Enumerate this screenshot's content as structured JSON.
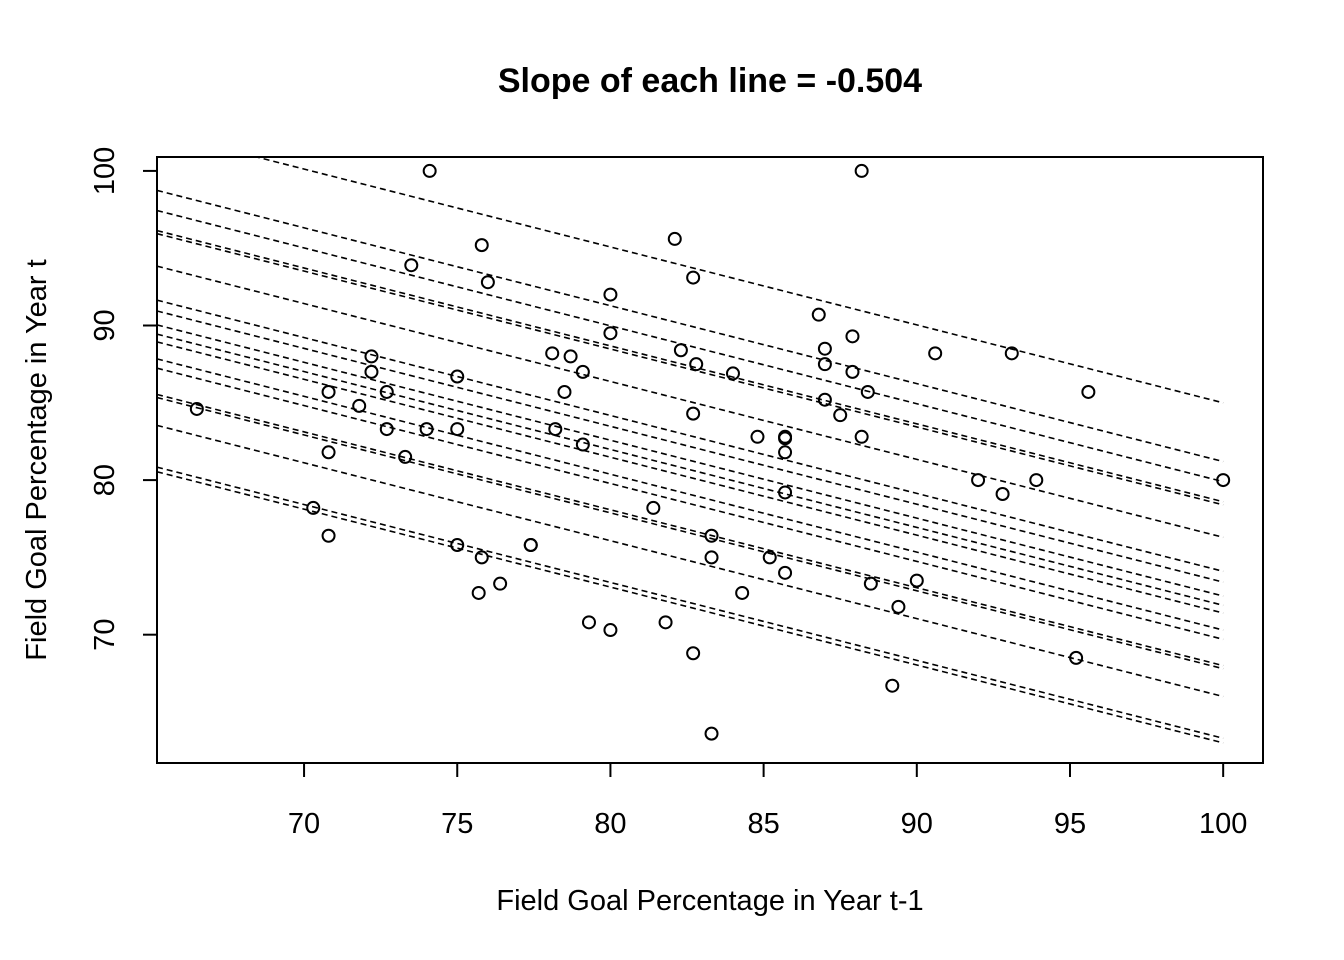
{
  "chart_data": {
    "type": "scatter",
    "title": "Slope of each line = -0.504",
    "xlabel": "Field Goal Percentage in Year t-1",
    "ylabel": "Field Goal Percentage in Year t",
    "xlim": [
      65.2,
      101.3
    ],
    "ylim": [
      61.7,
      100.9
    ],
    "xticks": [
      "70",
      "75",
      "80",
      "85",
      "90",
      "95",
      "100"
    ],
    "yticks": [
      "70",
      "80",
      "90",
      "100"
    ],
    "grid": false,
    "legend": "none",
    "slope": -0.504,
    "line_x_range": [
      65.2,
      100
    ],
    "line_y_at_100": [
      85.0,
      81.2,
      79.9,
      78.6,
      78.4,
      76.3,
      74.1,
      73.4,
      72.5,
      71.9,
      71.4,
      70.3,
      69.7,
      68.0,
      67.8,
      66.0,
      63.3,
      63.0
    ],
    "points": [
      [
        66.5,
        84.6
      ],
      [
        70.3,
        78.2
      ],
      [
        70.8,
        85.7
      ],
      [
        70.8,
        81.8
      ],
      [
        70.8,
        76.4
      ],
      [
        71.8,
        84.8
      ],
      [
        72.2,
        88.0
      ],
      [
        72.2,
        87.0
      ],
      [
        72.7,
        85.7
      ],
      [
        72.7,
        83.3
      ],
      [
        73.3,
        81.5
      ],
      [
        73.5,
        93.9
      ],
      [
        74.0,
        83.3
      ],
      [
        74.1,
        100.0
      ],
      [
        75.0,
        86.7
      ],
      [
        75.0,
        83.3
      ],
      [
        75.0,
        75.8
      ],
      [
        75.8,
        95.2
      ],
      [
        75.8,
        75.0
      ],
      [
        75.7,
        72.7
      ],
      [
        76.0,
        92.8
      ],
      [
        76.4,
        73.3
      ],
      [
        77.4,
        75.8
      ],
      [
        77.4,
        75.8
      ],
      [
        78.1,
        88.2
      ],
      [
        78.2,
        83.3
      ],
      [
        78.5,
        85.7
      ],
      [
        78.7,
        88.0
      ],
      [
        79.1,
        87.0
      ],
      [
        79.1,
        82.3
      ],
      [
        79.3,
        70.8
      ],
      [
        80.0,
        92.0
      ],
      [
        80.0,
        89.5
      ],
      [
        80.0,
        70.3
      ],
      [
        81.4,
        78.2
      ],
      [
        81.8,
        70.8
      ],
      [
        82.1,
        95.6
      ],
      [
        82.3,
        88.4
      ],
      [
        82.7,
        93.1
      ],
      [
        82.8,
        87.5
      ],
      [
        82.7,
        84.3
      ],
      [
        82.7,
        68.8
      ],
      [
        83.3,
        76.4
      ],
      [
        83.3,
        75.0
      ],
      [
        83.3,
        63.6
      ],
      [
        84.0,
        86.9
      ],
      [
        84.3,
        72.7
      ],
      [
        84.8,
        82.8
      ],
      [
        85.2,
        75.0
      ],
      [
        85.7,
        82.8
      ],
      [
        85.7,
        82.7
      ],
      [
        85.7,
        81.8
      ],
      [
        85.7,
        79.2
      ],
      [
        85.7,
        74.0
      ],
      [
        86.8,
        90.7
      ],
      [
        87.0,
        88.5
      ],
      [
        87.0,
        87.5
      ],
      [
        87.0,
        85.2
      ],
      [
        87.5,
        84.2
      ],
      [
        87.9,
        89.3
      ],
      [
        87.9,
        87.0
      ],
      [
        88.2,
        100.0
      ],
      [
        88.2,
        82.8
      ],
      [
        88.4,
        85.7
      ],
      [
        88.5,
        73.3
      ],
      [
        89.2,
        66.7
      ],
      [
        89.4,
        71.8
      ],
      [
        90.0,
        73.5
      ],
      [
        90.6,
        88.2
      ],
      [
        92.0,
        80.0
      ],
      [
        92.8,
        79.1
      ],
      [
        93.1,
        88.2
      ],
      [
        93.9,
        80.0
      ],
      [
        95.2,
        68.5
      ],
      [
        95.6,
        85.7
      ],
      [
        100.0,
        80.0
      ]
    ]
  }
}
